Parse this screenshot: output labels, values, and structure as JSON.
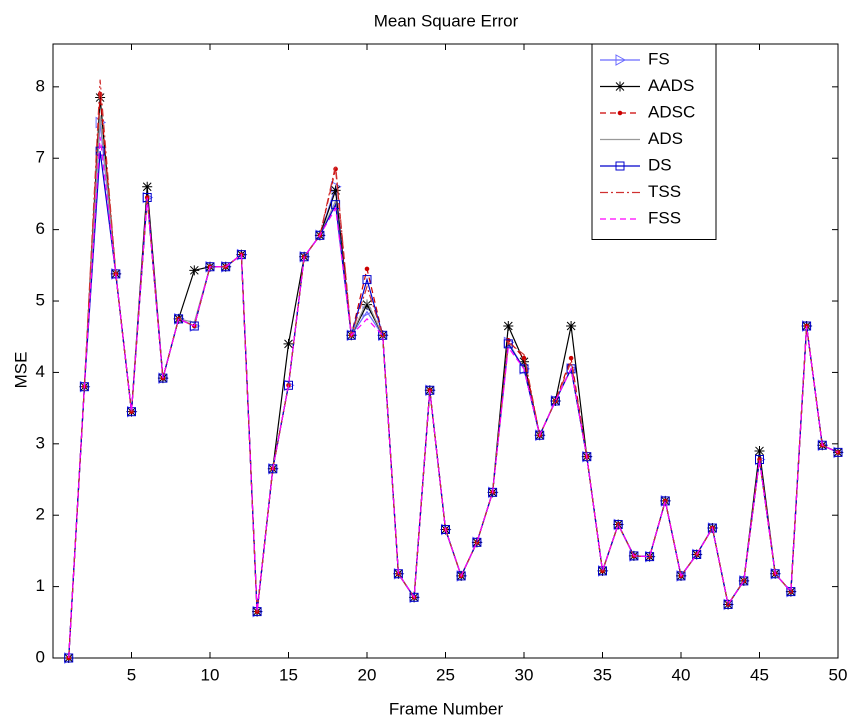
{
  "chart_data": {
    "type": "line",
    "title": "Mean Square Error",
    "x_label": "Frame Number",
    "y_label": "MSE",
    "x": [
      1,
      2,
      3,
      4,
      5,
      6,
      7,
      8,
      9,
      10,
      11,
      12,
      13,
      14,
      15,
      16,
      17,
      18,
      19,
      20,
      21,
      22,
      23,
      24,
      25,
      26,
      27,
      28,
      29,
      30,
      31,
      32,
      33,
      34,
      35,
      36,
      37,
      38,
      39,
      40,
      41,
      42,
      43,
      44,
      45,
      46,
      47,
      48,
      49,
      50
    ],
    "xlim": [
      0,
      50
    ],
    "xticks": [
      5,
      10,
      15,
      20,
      25,
      30,
      35,
      40,
      45,
      50
    ],
    "ylim": [
      0,
      8.6
    ],
    "yticks": [
      0,
      1,
      2,
      3,
      4,
      5,
      6,
      7,
      8
    ],
    "legend": "upper-right",
    "series": [
      {
        "name": "FS",
        "color": "#6b6bff",
        "marker": "triangle",
        "dash": "solid",
        "values": [
          0,
          3.8,
          7.5,
          5.38,
          3.45,
          6.45,
          3.92,
          4.75,
          4.65,
          5.48,
          5.48,
          5.65,
          0.65,
          2.65,
          3.82,
          5.62,
          5.92,
          6.6,
          4.52,
          4.85,
          4.52,
          1.18,
          0.85,
          3.75,
          1.8,
          1.15,
          1.62,
          2.32,
          4.42,
          4.05,
          3.12,
          3.6,
          4.05,
          2.82,
          1.22,
          1.87,
          1.43,
          1.42,
          2.2,
          1.15,
          1.45,
          1.82,
          0.75,
          1.08,
          2.78,
          1.18,
          0.93,
          4.65,
          2.98,
          2.88
        ]
      },
      {
        "name": "AADS",
        "color": "#000000",
        "marker": "star",
        "dash": "solid",
        "values": [
          0,
          3.8,
          7.85,
          5.38,
          3.45,
          6.6,
          3.92,
          4.75,
          5.43,
          5.48,
          5.48,
          5.65,
          0.65,
          2.65,
          4.4,
          5.62,
          5.92,
          6.55,
          4.52,
          4.95,
          4.52,
          1.18,
          0.85,
          3.75,
          1.8,
          1.15,
          1.62,
          2.32,
          4.65,
          4.15,
          3.12,
          3.6,
          4.65,
          2.82,
          1.22,
          1.87,
          1.43,
          1.42,
          2.2,
          1.15,
          1.45,
          1.82,
          0.75,
          1.08,
          2.9,
          1.18,
          0.93,
          4.65,
          2.98,
          2.88
        ]
      },
      {
        "name": "ADSC",
        "color": "#cc0000",
        "marker": "dot",
        "dash": "dashed",
        "values": [
          0,
          3.8,
          7.9,
          5.38,
          3.45,
          6.45,
          3.92,
          4.75,
          4.65,
          5.48,
          5.48,
          5.65,
          0.65,
          2.65,
          3.82,
          5.62,
          5.92,
          6.85,
          4.52,
          5.45,
          4.52,
          1.18,
          0.85,
          3.75,
          1.8,
          1.15,
          1.62,
          2.32,
          4.45,
          4.2,
          3.12,
          3.6,
          4.2,
          2.82,
          1.22,
          1.87,
          1.43,
          1.42,
          2.2,
          1.15,
          1.45,
          1.82,
          0.75,
          1.08,
          2.78,
          1.18,
          0.93,
          4.65,
          2.98,
          2.88
        ]
      },
      {
        "name": "ADS",
        "color": "#999999",
        "marker": "none",
        "dash": "solid",
        "values": [
          0,
          3.8,
          7.6,
          5.38,
          3.45,
          6.45,
          3.92,
          4.75,
          4.7,
          5.48,
          5.48,
          5.65,
          0.65,
          2.65,
          3.82,
          5.62,
          5.92,
          6.4,
          4.52,
          5.0,
          4.52,
          1.18,
          0.85,
          3.75,
          1.8,
          1.15,
          1.62,
          2.32,
          4.42,
          4.05,
          3.12,
          3.6,
          4.05,
          2.82,
          1.22,
          1.87,
          1.43,
          1.42,
          2.2,
          1.15,
          1.45,
          1.82,
          0.75,
          1.08,
          2.78,
          1.18,
          0.93,
          4.65,
          2.98,
          2.88
        ]
      },
      {
        "name": "DS",
        "color": "#0000cc",
        "marker": "square",
        "dash": "solid",
        "values": [
          0,
          3.8,
          7.1,
          5.38,
          3.45,
          6.45,
          3.92,
          4.75,
          4.65,
          5.48,
          5.48,
          5.65,
          0.65,
          2.65,
          3.82,
          5.62,
          5.92,
          6.35,
          4.52,
          5.3,
          4.52,
          1.18,
          0.85,
          3.75,
          1.8,
          1.15,
          1.62,
          2.32,
          4.4,
          4.05,
          3.12,
          3.6,
          4.05,
          2.82,
          1.22,
          1.87,
          1.43,
          1.42,
          2.2,
          1.15,
          1.45,
          1.82,
          0.75,
          1.08,
          2.78,
          1.18,
          0.93,
          4.65,
          2.98,
          2.88
        ]
      },
      {
        "name": "TSS",
        "color": "#d03030",
        "marker": "none",
        "dash": "dashdot",
        "values": [
          0,
          3.8,
          8.1,
          5.38,
          3.45,
          6.45,
          3.92,
          4.75,
          4.65,
          5.48,
          5.48,
          5.65,
          0.65,
          2.65,
          3.82,
          5.62,
          5.92,
          6.9,
          4.52,
          5.2,
          4.52,
          1.18,
          0.85,
          3.75,
          1.8,
          1.15,
          1.62,
          2.32,
          4.42,
          4.25,
          3.12,
          3.6,
          4.15,
          2.82,
          1.22,
          1.87,
          1.43,
          1.42,
          2.2,
          1.15,
          1.45,
          1.82,
          0.75,
          1.08,
          2.78,
          1.18,
          0.93,
          4.65,
          2.98,
          2.88
        ]
      },
      {
        "name": "FSS",
        "color": "#ff00ff",
        "marker": "none",
        "dash": "dashed",
        "values": [
          0,
          3.8,
          7.3,
          5.38,
          3.45,
          6.45,
          3.92,
          4.75,
          4.65,
          5.48,
          5.48,
          5.65,
          0.65,
          2.65,
          3.82,
          5.62,
          5.92,
          6.3,
          4.52,
          4.75,
          4.52,
          1.18,
          0.85,
          3.75,
          1.8,
          1.15,
          1.62,
          2.32,
          4.35,
          4.05,
          3.12,
          3.6,
          4.05,
          2.82,
          1.22,
          1.87,
          1.43,
          1.42,
          2.2,
          1.15,
          1.45,
          1.82,
          0.75,
          1.08,
          2.78,
          1.18,
          0.93,
          4.65,
          2.98,
          2.88
        ]
      }
    ]
  }
}
